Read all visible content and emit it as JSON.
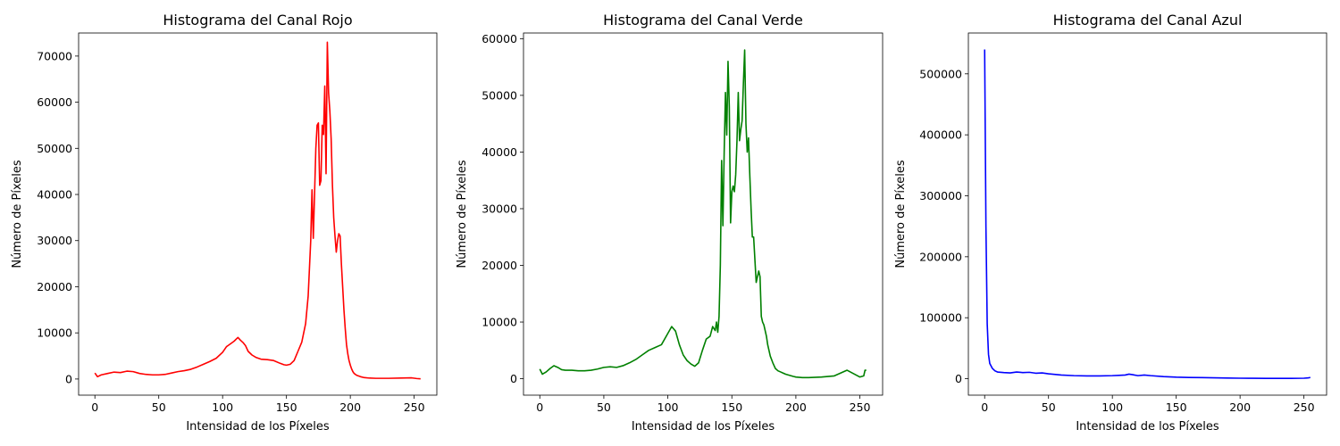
{
  "chart_data": [
    {
      "type": "line",
      "title": "Histograma del Canal Rojo",
      "xlabel": "Intensidad de los Píxeles",
      "ylabel": "Número de Píxeles",
      "xlim": [
        -12.75,
        267.75
      ],
      "ylim": [
        -3500,
        75000
      ],
      "xticks": [
        0,
        50,
        100,
        150,
        200,
        250
      ],
      "yticks": [
        0,
        10000,
        20000,
        30000,
        40000,
        50000,
        60000,
        70000
      ],
      "grid": false,
      "series": [
        {
          "color": "#ff0000",
          "x": [
            0,
            2,
            5,
            10,
            15,
            20,
            25,
            30,
            35,
            40,
            45,
            50,
            55,
            60,
            65,
            70,
            75,
            80,
            85,
            90,
            95,
            100,
            103,
            106,
            109,
            112,
            114,
            116,
            118,
            120,
            123,
            126,
            130,
            135,
            140,
            145,
            148,
            150,
            153,
            156,
            159,
            162,
            165,
            167,
            169,
            170,
            171,
            172,
            173,
            174,
            175,
            176,
            177,
            178,
            179,
            180,
            181,
            182,
            183,
            184,
            185,
            186,
            187,
            188,
            189,
            190,
            191,
            192,
            193,
            194,
            195,
            196,
            197,
            198,
            199,
            200,
            201,
            202,
            203,
            205,
            208,
            211,
            215,
            220,
            230,
            240,
            248,
            252,
            255
          ],
          "y": [
            1300,
            500,
            900,
            1200,
            1500,
            1400,
            1700,
            1600,
            1200,
            1000,
            900,
            900,
            1000,
            1300,
            1600,
            1800,
            2100,
            2600,
            3200,
            3800,
            4500,
            5800,
            7000,
            7600,
            8200,
            9000,
            8400,
            7900,
            7200,
            6000,
            5200,
            4700,
            4300,
            4200,
            4000,
            3400,
            3100,
            3000,
            3200,
            4000,
            6000,
            8000,
            12000,
            18000,
            30000,
            41000,
            30500,
            40000,
            50000,
            55000,
            55500,
            42000,
            43000,
            55000,
            53000,
            63500,
            44500,
            73000,
            62000,
            58000,
            52000,
            42000,
            35000,
            31000,
            27500,
            30000,
            31500,
            31000,
            25000,
            20000,
            15000,
            11000,
            7500,
            5500,
            4000,
            3000,
            2200,
            1600,
            1200,
            800,
            500,
            300,
            200,
            150,
            150,
            200,
            250,
            100,
            50
          ]
        }
      ]
    },
    {
      "type": "line",
      "title": "Histograma del Canal Verde",
      "xlabel": "Intensidad de los Píxeles",
      "ylabel": "Número de Píxeles",
      "xlim": [
        -12.75,
        267.75
      ],
      "ylim": [
        -2900,
        61000
      ],
      "xticks": [
        0,
        50,
        100,
        150,
        200,
        250
      ],
      "yticks": [
        0,
        10000,
        20000,
        30000,
        40000,
        50000,
        60000
      ],
      "grid": false,
      "series": [
        {
          "color": "#008000",
          "x": [
            0,
            2,
            5,
            8,
            11,
            14,
            17,
            20,
            25,
            30,
            35,
            40,
            45,
            50,
            55,
            60,
            65,
            70,
            75,
            80,
            85,
            90,
            95,
            100,
            103,
            106,
            109,
            112,
            115,
            118,
            121,
            124,
            127,
            130,
            133,
            135,
            137,
            138,
            139,
            140,
            141,
            142,
            143,
            144,
            145,
            146,
            147,
            148,
            149,
            150,
            151,
            152,
            153,
            154,
            155,
            156,
            157,
            158,
            159,
            160,
            161,
            162,
            163,
            164,
            165,
            166,
            167,
            168,
            169,
            170,
            171,
            172,
            173,
            174,
            175,
            176,
            177,
            178,
            179,
            180,
            182,
            184,
            186,
            188,
            190,
            192,
            195,
            198,
            200,
            205,
            210,
            220,
            230,
            240,
            250,
            253,
            254,
            255
          ],
          "y": [
            1700,
            800,
            1200,
            1800,
            2300,
            2000,
            1600,
            1500,
            1500,
            1400,
            1400,
            1500,
            1700,
            2000,
            2100,
            2000,
            2300,
            2800,
            3400,
            4200,
            5000,
            5500,
            6000,
            8000,
            9200,
            8400,
            6000,
            4200,
            3200,
            2600,
            2200,
            2800,
            5000,
            7000,
            7500,
            9200,
            8500,
            10000,
            8200,
            11000,
            20000,
            38500,
            27000,
            40000,
            50500,
            43000,
            56000,
            48000,
            27500,
            33000,
            34000,
            33000,
            36000,
            42000,
            50500,
            42000,
            44000,
            45500,
            52000,
            58000,
            45000,
            40000,
            42500,
            36000,
            30000,
            25000,
            25000,
            21000,
            17000,
            18000,
            19000,
            18000,
            11000,
            10000,
            9500,
            8500,
            7500,
            6000,
            5000,
            4000,
            2800,
            1800,
            1400,
            1200,
            1000,
            800,
            600,
            400,
            300,
            200,
            200,
            300,
            500,
            1500,
            300,
            500,
            1500,
            1500
          ]
        }
      ]
    },
    {
      "type": "line",
      "title": "Histograma del Canal Azul",
      "xlabel": "Intensidad de los Píxeles",
      "ylabel": "Número de Píxeles",
      "xlim": [
        -12.75,
        267.75
      ],
      "ylim": [
        -27000,
        567000
      ],
      "xticks": [
        0,
        50,
        100,
        150,
        200,
        250
      ],
      "yticks": [
        0,
        100000,
        200000,
        300000,
        400000,
        500000
      ],
      "grid": false,
      "series": [
        {
          "color": "#0000ff",
          "x": [
            0,
            1,
            2,
            3,
            4,
            6,
            8,
            10,
            15,
            20,
            25,
            30,
            35,
            40,
            45,
            50,
            60,
            70,
            80,
            90,
            100,
            105,
            110,
            113,
            116,
            120,
            125,
            130,
            140,
            150,
            160,
            170,
            180,
            190,
            200,
            210,
            220,
            230,
            240,
            250,
            253,
            255
          ],
          "y": [
            540000,
            250000,
            90000,
            40000,
            25000,
            17000,
            13000,
            11000,
            10000,
            9500,
            11000,
            10000,
            10500,
            9000,
            9500,
            8000,
            6000,
            5000,
            4500,
            4500,
            5000,
            5500,
            6000,
            7500,
            6500,
            5000,
            6000,
            5000,
            3500,
            2500,
            2000,
            1800,
            1500,
            1000,
            800,
            700,
            600,
            600,
            500,
            800,
            1200,
            2000
          ]
        }
      ]
    }
  ]
}
